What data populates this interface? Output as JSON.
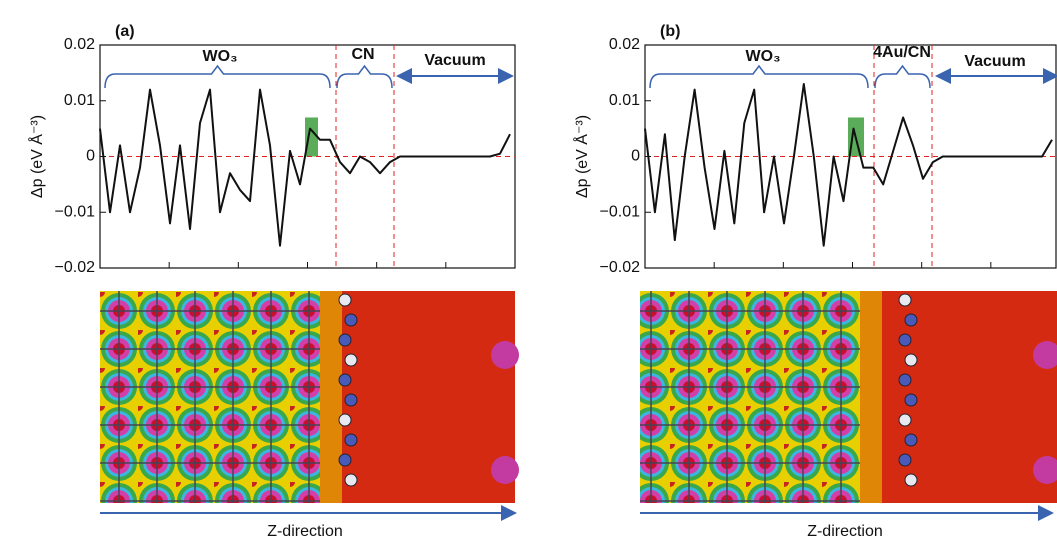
{
  "chart_data": [
    {
      "type": "line",
      "categories": [
        null,
        null,
        null,
        null,
        null,
        null,
        null,
        null,
        null,
        null,
        null,
        null,
        null,
        null,
        null,
        null,
        null,
        null,
        null,
        null,
        null,
        null,
        null,
        null,
        null,
        null,
        null,
        null,
        null,
        null,
        null,
        null,
        null,
        null,
        null,
        null,
        null,
        null,
        null,
        null,
        null,
        null
      ],
      "values": [
        0.005,
        -0.01,
        0.002,
        -0.01,
        -0.002,
        0.012,
        0.002,
        -0.012,
        0.002,
        -0.013,
        0.006,
        0.012,
        -0.01,
        -0.003,
        -0.006,
        -0.008,
        0.012,
        0.002,
        -0.016,
        0.001,
        -0.005,
        0.005,
        0.003,
        0.003,
        -0.001,
        -0.003,
        0,
        -0.001,
        -0.003,
        -0.001,
        0,
        0,
        0,
        0,
        0,
        0,
        0,
        0,
        0,
        0,
        0.0005,
        0.004
      ],
      "color": "#111111",
      "ylabel": "Δp (eV Å⁻³)",
      "xlabel": "Z-direction",
      "ylim": [
        -0.02,
        0.02
      ],
      "yticks": [
        {
          "value": -0.02,
          "label": "−0.02"
        },
        {
          "value": -0.01,
          "label": "−0.01"
        },
        0,
        0.01,
        0.02
      ],
      "annotations": [
        "(a)",
        "WO₃",
        "CN",
        "Vacuum"
      ]
    },
    {
      "type": "line",
      "categories": [
        null,
        null,
        null,
        null,
        null,
        null,
        null,
        null,
        null,
        null,
        null,
        null,
        null,
        null,
        null,
        null,
        null,
        null,
        null,
        null,
        null,
        null,
        null,
        null,
        null,
        null,
        null,
        null,
        null,
        null,
        null,
        null,
        null,
        null,
        null,
        null,
        null,
        null,
        null,
        null,
        null,
        null
      ],
      "values": [
        0.005,
        -0.01,
        0.004,
        -0.015,
        0,
        0.012,
        -0.002,
        -0.013,
        0.001,
        -0.012,
        0.006,
        0.012,
        -0.01,
        0,
        -0.012,
        0,
        0.013,
        0,
        -0.016,
        0,
        -0.008,
        0.005,
        -0.002,
        -0.002,
        -0.005,
        0.001,
        0.007,
        0.002,
        -0.004,
        -0.001,
        0,
        0,
        0,
        0,
        0,
        0,
        0,
        0,
        0,
        0,
        0,
        0.003
      ],
      "color": "#111111",
      "ylabel": "Δp (eV Å⁻³)",
      "xlabel": "Z-direction",
      "ylim": [
        -0.02,
        0.02
      ],
      "yticks": [
        {
          "value": -0.02,
          "label": "−0.02"
        },
        {
          "value": -0.01,
          "label": "−0.01"
        },
        0,
        0.01,
        0.02
      ],
      "annotations": [
        "(b)",
        "WO₃",
        "4Au/CN",
        "Vacuum"
      ]
    }
  ]
}
